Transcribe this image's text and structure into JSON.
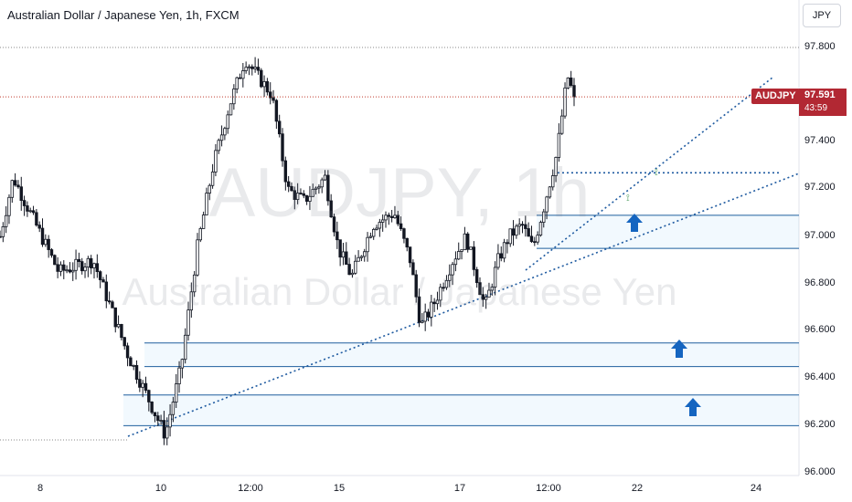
{
  "header": {
    "title": "Australian Dollar / Japanese Yen, 1h, FXCM",
    "currency_button": "JPY"
  },
  "watermark": {
    "symbol": "AUDJPY, 1h",
    "description": "Australian Dollar / Japanese Yen"
  },
  "price_scale": {
    "labels": [
      "97.800",
      "97.600",
      "97.400",
      "97.200",
      "97.000",
      "96.800",
      "96.600",
      "96.400",
      "96.200",
      "96.000"
    ]
  },
  "time_axis": {
    "labels": [
      "8",
      "10",
      "12:00",
      "15",
      "17",
      "12:00",
      "22",
      "24"
    ]
  },
  "last_price": {
    "symbol": "AUDJPY",
    "price": "97.591",
    "countdown": "43:59"
  },
  "colors": {
    "candle": "#131722",
    "zone_line": "#1f5f9e",
    "trend_line": "#1e5aa0",
    "arrow": "#1565c0",
    "badge": "#b22833",
    "reference_line": "#8a8a8a",
    "current_price_line": "#c0392b",
    "ellipse": "#4a9a5a"
  },
  "chart_data": {
    "type": "candlestick",
    "timeframe": "1h",
    "ylim": [
      96.0,
      97.9
    ],
    "last": 97.591,
    "high_reference": 97.8,
    "low_reference": 96.14,
    "zones": [
      {
        "from": 96.55,
        "to": 96.45
      },
      {
        "from": 96.33,
        "to": 96.2
      },
      {
        "from": 97.09,
        "to": 96.95
      }
    ],
    "horizontal_dotted": 97.27,
    "anchors": [
      {
        "t": -2.0,
        "p": 97.0
      },
      {
        "t": -1.5,
        "p": 97.25
      },
      {
        "t": 0.2,
        "p": 96.85
      },
      {
        "t": 1.5,
        "p": 96.9
      },
      {
        "t": 2.8,
        "p": 96.5
      },
      {
        "t": 4.2,
        "p": 96.16
      },
      {
        "t": 4.8,
        "p": 96.45
      },
      {
        "t": 5.4,
        "p": 96.95
      },
      {
        "t": 6.0,
        "p": 97.3
      },
      {
        "t": 6.6,
        "p": 97.55
      },
      {
        "t": 7.2,
        "p": 97.75
      },
      {
        "t": 8.2,
        "p": 97.6
      },
      {
        "t": 8.8,
        "p": 97.2
      },
      {
        "t": 9.4,
        "p": 97.15
      },
      {
        "t": 10.2,
        "p": 97.25
      },
      {
        "t": 10.7,
        "p": 96.95
      },
      {
        "t": 11.2,
        "p": 96.83
      },
      {
        "t": 12.0,
        "p": 97.05
      },
      {
        "t": 12.8,
        "p": 97.1
      },
      {
        "t": 13.4,
        "p": 96.9
      },
      {
        "t": 13.8,
        "p": 96.62
      },
      {
        "t": 14.3,
        "p": 96.72
      },
      {
        "t": 15.0,
        "p": 96.9
      },
      {
        "t": 15.5,
        "p": 97.0
      },
      {
        "t": 16.2,
        "p": 96.7
      },
      {
        "t": 16.7,
        "p": 96.9
      },
      {
        "t": 17.1,
        "p": 97.0
      },
      {
        "t": 17.6,
        "p": 97.05
      },
      {
        "t": 18.0,
        "p": 96.95
      },
      {
        "t": 18.4,
        "p": 97.12
      },
      {
        "t": 18.9,
        "p": 97.35
      },
      {
        "t": 19.3,
        "p": 97.68
      },
      {
        "t": 19.55,
        "p": 97.59
      }
    ]
  }
}
